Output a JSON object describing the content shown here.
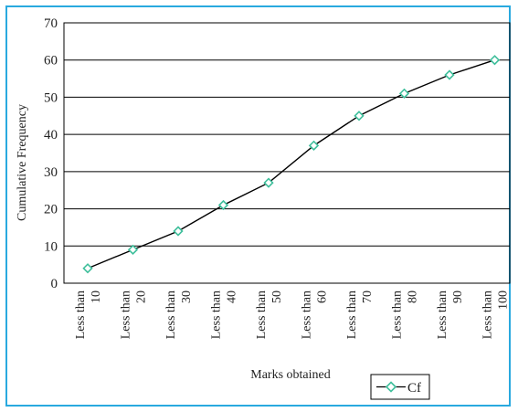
{
  "chart_data": {
    "type": "line",
    "title": "",
    "xlabel": "Marks obtained",
    "ylabel": "Cumulative Frequency",
    "categories": [
      [
        "Less than",
        "10"
      ],
      [
        "Less than",
        "20"
      ],
      [
        "Less than",
        "30"
      ],
      [
        "Less than",
        "40"
      ],
      [
        "Less than",
        "50"
      ],
      [
        "Less than",
        "60"
      ],
      [
        "Less than",
        "70"
      ],
      [
        "Less than",
        "80"
      ],
      [
        "Less than",
        "90"
      ],
      [
        "Less than",
        "100"
      ]
    ],
    "series": [
      {
        "name": "Cf",
        "values": [
          4,
          9,
          14,
          21,
          27,
          37,
          45,
          51,
          56,
          60
        ]
      }
    ],
    "ylim": [
      0,
      70
    ],
    "yticks": [
      "0",
      "10",
      "20",
      "30",
      "40",
      "50",
      "60",
      "70"
    ],
    "grid": "horizontal",
    "legend_position": "bottom-right",
    "colors": {
      "line": "#000000",
      "marker": "#3fbf9c",
      "frame": "#29a9df"
    }
  }
}
